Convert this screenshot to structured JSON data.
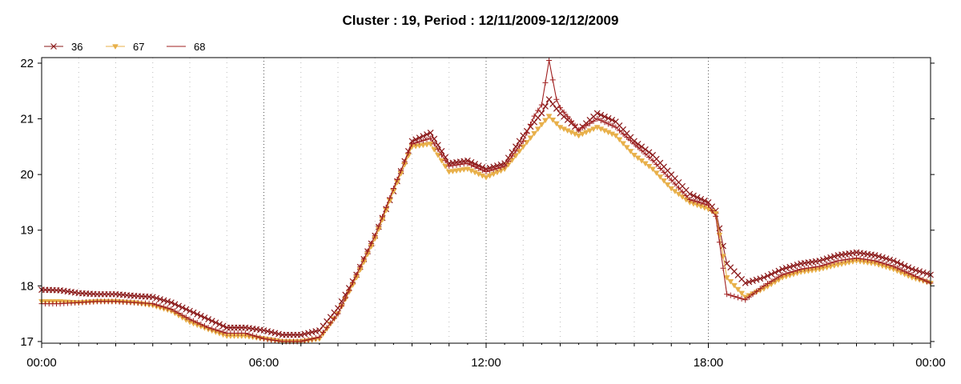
{
  "chart_data": {
    "type": "line",
    "title": "Cluster : 19, Period : 12/11/2009-12/12/2009",
    "xlabel": "",
    "ylabel": "",
    "x_tick_labels": [
      "00:00",
      "06:00",
      "12:00",
      "18:00",
      "00:00"
    ],
    "x_tick_hours": [
      0,
      6,
      12,
      18,
      24
    ],
    "xlim_hours": [
      0,
      24
    ],
    "y_ticks": [
      17,
      18,
      19,
      20,
      21,
      22
    ],
    "ylim": [
      16.97,
      22.1
    ],
    "grid": "dotted",
    "legend_position": "top-left",
    "series": [
      {
        "name": "36",
        "color": "#8b1a1a",
        "marker": "x",
        "x": [
          0,
          0.5,
          1,
          1.5,
          2,
          2.5,
          3,
          3.5,
          4,
          4.5,
          5,
          5.5,
          6,
          6.5,
          7,
          7.5,
          8,
          8.5,
          9,
          9.5,
          10,
          10.5,
          11,
          11.5,
          12,
          12.5,
          13,
          13.5,
          13.7,
          14,
          14.5,
          15,
          15.5,
          16,
          16.5,
          17,
          17.5,
          18,
          18.2,
          18.5,
          19,
          19.5,
          20,
          20.5,
          21,
          21.5,
          22,
          22.5,
          23,
          23.5,
          24
        ],
        "y": [
          17.93,
          17.92,
          17.87,
          17.85,
          17.85,
          17.82,
          17.8,
          17.7,
          17.55,
          17.4,
          17.25,
          17.25,
          17.2,
          17.12,
          17.12,
          17.2,
          17.6,
          18.2,
          18.9,
          19.7,
          20.6,
          20.75,
          20.2,
          20.25,
          20.1,
          20.2,
          20.7,
          21.1,
          21.35,
          21.1,
          20.8,
          21.1,
          20.95,
          20.6,
          20.35,
          20.0,
          19.65,
          19.5,
          19.35,
          18.4,
          18.05,
          18.15,
          18.3,
          18.4,
          18.45,
          18.55,
          18.6,
          18.55,
          18.45,
          18.3,
          18.2
        ]
      },
      {
        "name": "67",
        "color": "#e8b04a",
        "marker": "triangle-down",
        "x": [
          0,
          0.5,
          1,
          1.5,
          2,
          2.5,
          3,
          3.5,
          4,
          4.5,
          5,
          5.5,
          6,
          6.5,
          7,
          7.5,
          8,
          8.5,
          9,
          9.5,
          10,
          10.5,
          11,
          11.5,
          12,
          12.5,
          13,
          13.5,
          13.7,
          14,
          14.5,
          15,
          15.5,
          16,
          16.5,
          17,
          17.5,
          18,
          18.2,
          18.5,
          19,
          19.5,
          20,
          20.5,
          21,
          21.5,
          22,
          22.5,
          23,
          23.5,
          24
        ],
        "y": [
          17.72,
          17.72,
          17.7,
          17.72,
          17.72,
          17.7,
          17.65,
          17.55,
          17.35,
          17.22,
          17.1,
          17.1,
          17.05,
          17.0,
          17.0,
          17.05,
          17.5,
          18.15,
          18.85,
          19.7,
          20.5,
          20.55,
          20.05,
          20.1,
          19.95,
          20.1,
          20.5,
          20.9,
          21.05,
          20.85,
          20.7,
          20.85,
          20.7,
          20.35,
          20.1,
          19.75,
          19.5,
          19.38,
          19.3,
          18.15,
          17.8,
          17.95,
          18.15,
          18.25,
          18.3,
          18.38,
          18.45,
          18.4,
          18.3,
          18.15,
          18.05
        ]
      },
      {
        "name": "68",
        "color": "#a02020",
        "marker": "plus",
        "x": [
          0,
          0.5,
          1,
          1.5,
          2,
          2.5,
          3,
          3.5,
          4,
          4.5,
          5,
          5.5,
          6,
          6.5,
          7,
          7.5,
          8,
          8.5,
          9,
          9.5,
          10,
          10.5,
          11,
          11.5,
          12,
          12.5,
          13,
          13.3,
          13.5,
          13.7,
          13.9,
          14,
          14.5,
          15,
          15.5,
          16,
          16.5,
          17,
          17.5,
          18,
          18.2,
          18.5,
          19,
          19.5,
          20,
          20.5,
          21,
          21.5,
          22,
          22.5,
          23,
          23.5,
          24
        ],
        "y": [
          17.68,
          17.68,
          17.7,
          17.72,
          17.72,
          17.7,
          17.68,
          17.58,
          17.4,
          17.25,
          17.15,
          17.15,
          17.05,
          17.0,
          17.0,
          17.08,
          17.5,
          18.2,
          18.9,
          19.75,
          20.55,
          20.65,
          20.15,
          20.2,
          20.05,
          20.15,
          20.6,
          21.05,
          21.25,
          22.05,
          21.35,
          21.2,
          20.8,
          21.0,
          20.85,
          20.55,
          20.25,
          19.9,
          19.55,
          19.45,
          19.25,
          17.85,
          17.75,
          18.0,
          18.2,
          18.3,
          18.35,
          18.45,
          18.5,
          18.45,
          18.35,
          18.2,
          18.05
        ]
      }
    ]
  }
}
